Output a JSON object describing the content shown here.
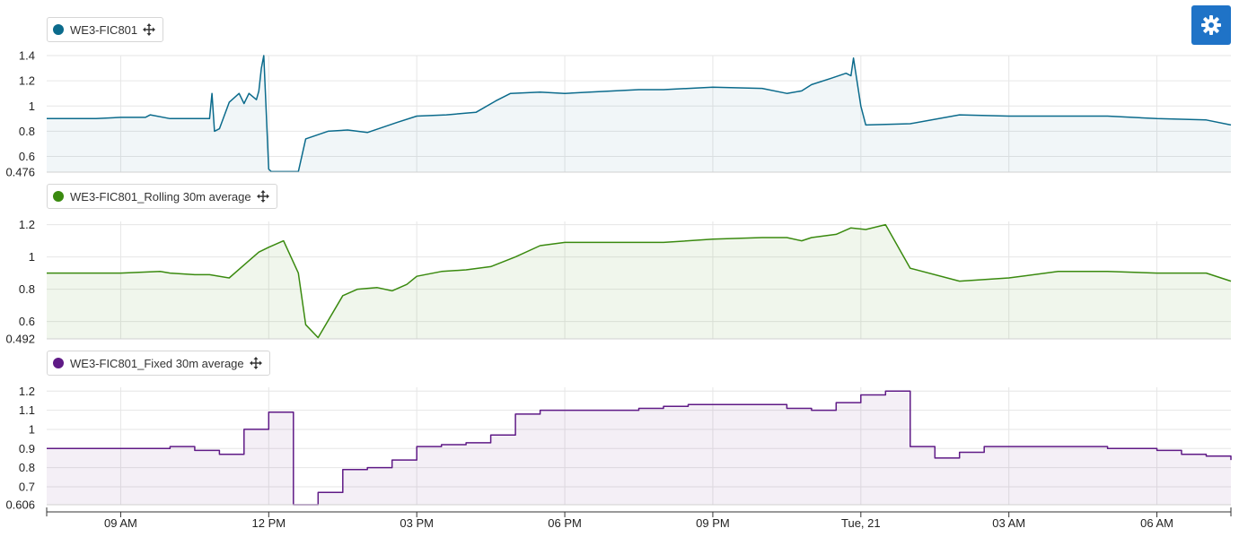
{
  "settings_button": {
    "icon": "gear-icon",
    "color": "#1f73c7"
  },
  "x_axis": {
    "tick_labels": [
      "09 AM",
      "12 PM",
      "03 PM",
      "06 PM",
      "09 PM",
      "Tue, 21",
      "03 AM",
      "06 AM"
    ]
  },
  "chart_data": [
    {
      "type": "line",
      "series": [
        {
          "name": "WE3-FIC801",
          "color": "#0b6b8c"
        }
      ],
      "y_tick_labels": [
        "1.4",
        "1.2",
        "1",
        "0.8",
        "0.6",
        "0.476"
      ],
      "ylim": [
        0.476,
        1.4
      ],
      "x_hours": [
        7.5,
        8.5,
        9.0,
        9.5,
        9.6,
        10.0,
        10.5,
        10.8,
        10.85,
        10.9,
        11.0,
        11.2,
        11.4,
        11.5,
        11.6,
        11.75,
        11.8,
        11.85,
        11.9,
        12.0,
        12.05,
        12.1,
        12.6,
        12.75,
        13.2,
        13.6,
        14.0,
        14.6,
        15.0,
        15.6,
        16.2,
        16.6,
        16.9,
        17.5,
        18.0,
        18.5,
        19.0,
        19.5,
        20.0,
        21.0,
        22.0,
        22.5,
        22.8,
        23.0,
        23.4,
        23.7,
        23.8,
        23.85,
        24.0,
        24.1,
        25.0,
        26.0,
        27.0,
        28.0,
        29.0,
        30.0,
        31.0,
        31.5
      ],
      "values": [
        0.9,
        0.9,
        0.91,
        0.91,
        0.93,
        0.9,
        0.9,
        0.9,
        1.1,
        0.8,
        0.82,
        1.03,
        1.1,
        1.02,
        1.1,
        1.05,
        1.12,
        1.3,
        1.4,
        0.5,
        0.48,
        0.48,
        0.48,
        0.74,
        0.8,
        0.81,
        0.79,
        0.87,
        0.92,
        0.93,
        0.95,
        1.04,
        1.1,
        1.11,
        1.1,
        1.11,
        1.12,
        1.13,
        1.13,
        1.15,
        1.14,
        1.1,
        1.12,
        1.17,
        1.22,
        1.26,
        1.24,
        1.38,
        1.0,
        0.85,
        0.86,
        0.93,
        0.92,
        0.92,
        0.92,
        0.9,
        0.89,
        0.85
      ]
    },
    {
      "type": "area",
      "series": [
        {
          "name": "WE3-FIC801_Rolling 30m average",
          "color": "#3a8a0f"
        }
      ],
      "y_tick_labels": [
        "1.2",
        "1",
        "0.8",
        "0.6",
        "0.492"
      ],
      "ylim": [
        0.492,
        1.22
      ],
      "x_hours": [
        7.5,
        8.0,
        8.5,
        9.0,
        9.8,
        10.0,
        10.5,
        10.8,
        11.2,
        11.5,
        11.8,
        12.0,
        12.3,
        12.6,
        12.75,
        13.0,
        13.5,
        13.8,
        14.2,
        14.5,
        14.8,
        15.0,
        15.5,
        16.0,
        16.5,
        17.0,
        17.5,
        18.0,
        19.0,
        20.0,
        21.0,
        22.0,
        22.5,
        22.8,
        23.0,
        23.5,
        23.8,
        24.1,
        24.5,
        25.0,
        26.0,
        27.0,
        28.0,
        29.0,
        30.0,
        31.0,
        31.5
      ],
      "values": [
        0.9,
        0.9,
        0.9,
        0.9,
        0.91,
        0.9,
        0.89,
        0.89,
        0.87,
        0.95,
        1.03,
        1.06,
        1.1,
        0.9,
        0.58,
        0.5,
        0.76,
        0.8,
        0.81,
        0.79,
        0.83,
        0.88,
        0.91,
        0.92,
        0.94,
        1.0,
        1.07,
        1.09,
        1.09,
        1.09,
        1.11,
        1.12,
        1.12,
        1.1,
        1.12,
        1.14,
        1.18,
        1.17,
        1.2,
        0.93,
        0.85,
        0.87,
        0.91,
        0.91,
        0.9,
        0.9,
        0.85
      ]
    },
    {
      "type": "line",
      "step": true,
      "series": [
        {
          "name": "WE3-FIC801_Fixed 30m average",
          "color": "#5f1a86"
        }
      ],
      "y_tick_labels": [
        "1.2",
        "1.1",
        "1",
        "0.9",
        "0.8",
        "0.7",
        "0.606"
      ],
      "ylim": [
        0.606,
        1.22
      ],
      "x_hours": [
        7.5,
        8.0,
        8.5,
        9.0,
        9.5,
        10.0,
        10.5,
        11.0,
        11.5,
        12.0,
        12.5,
        13.0,
        13.5,
        14.0,
        14.5,
        15.0,
        15.5,
        16.0,
        16.5,
        17.0,
        17.5,
        18.0,
        18.5,
        19.0,
        19.5,
        20.0,
        20.5,
        21.0,
        21.5,
        22.0,
        22.5,
        23.0,
        23.5,
        24.0,
        24.5,
        25.0,
        25.5,
        26.0,
        26.5,
        27.0,
        27.5,
        28.0,
        28.5,
        29.0,
        29.5,
        30.0,
        30.5,
        31.0,
        31.5
      ],
      "values": [
        0.9,
        0.9,
        0.9,
        0.9,
        0.9,
        0.91,
        0.89,
        0.87,
        1.0,
        1.09,
        0.606,
        0.67,
        0.79,
        0.8,
        0.84,
        0.91,
        0.92,
        0.93,
        0.97,
        1.08,
        1.1,
        1.1,
        1.1,
        1.1,
        1.11,
        1.12,
        1.13,
        1.13,
        1.13,
        1.13,
        1.11,
        1.1,
        1.14,
        1.18,
        1.2,
        0.91,
        0.85,
        0.88,
        0.91,
        0.91,
        0.91,
        0.91,
        0.91,
        0.9,
        0.9,
        0.89,
        0.87,
        0.86,
        0.84
      ]
    }
  ]
}
